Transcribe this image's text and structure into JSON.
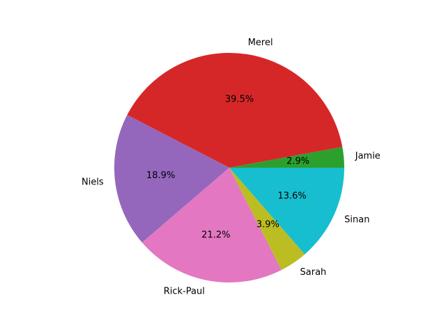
{
  "chart_data": {
    "type": "pie",
    "start_angle_deg": 0,
    "direction": "counterclockwise",
    "slices": [
      {
        "label": "Jamie",
        "value": 2.9,
        "pct_label": "2.9%",
        "color": "#2ca02c"
      },
      {
        "label": "Merel",
        "value": 39.5,
        "pct_label": "39.5%",
        "color": "#d62728"
      },
      {
        "label": "Niels",
        "value": 18.9,
        "pct_label": "18.9%",
        "color": "#9467bd"
      },
      {
        "label": "Rick-Paul",
        "value": 21.2,
        "pct_label": "21.2%",
        "color": "#e377c2"
      },
      {
        "label": "Sarah",
        "value": 3.9,
        "pct_label": "3.9%",
        "color": "#bcbd22"
      },
      {
        "label": "Sinan",
        "value": 13.6,
        "pct_label": "13.6%",
        "color": "#17becf"
      }
    ]
  }
}
